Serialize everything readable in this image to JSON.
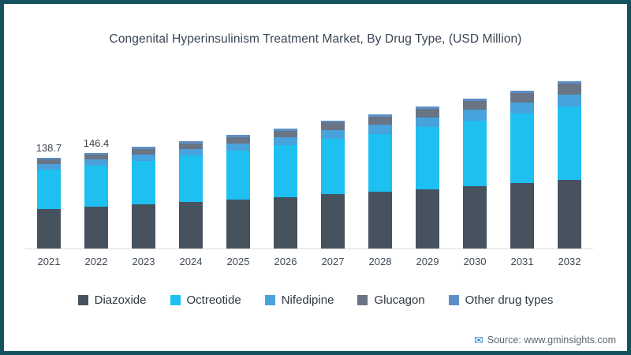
{
  "frame": {
    "border_color": "#15525F",
    "background": "#ffffff"
  },
  "source": {
    "text": "Source: www.gminsights.com",
    "icon": "envelope-icon",
    "icon_color": "#2B7FD6"
  },
  "chart_data": {
    "type": "bar",
    "stacked": true,
    "title": "Congenital Hyperinsulinism Treatment Market, By Drug Type, (USD Million)",
    "xlabel": "",
    "ylabel": "USD Million",
    "legend_position": "bottom",
    "y_axis_visible": false,
    "grid": false,
    "categories": [
      "2021",
      "2022",
      "2023",
      "2024",
      "2025",
      "2026",
      "2027",
      "2028",
      "2029",
      "2030",
      "2031",
      "2032"
    ],
    "value_labels": [
      "138.7",
      "146.4",
      "",
      "",
      "",
      "",
      "",
      "",
      "",
      "",
      "",
      ""
    ],
    "totals": [
      138.7,
      146.4,
      155.0,
      163.9,
      173.2,
      183.1,
      195.6,
      204.6,
      216.6,
      229.1,
      241.1,
      255.4
    ],
    "series": [
      {
        "name": "Diazoxide",
        "color": "#47525F",
        "values": [
          60.3,
          63.3,
          66.9,
          70.6,
          74.4,
          78.4,
          82.7,
          86.3,
          90.9,
          95.7,
          100.4,
          105.3
        ]
      },
      {
        "name": "Octreotide",
        "color": "#1EC0F2",
        "values": [
          60.3,
          63.7,
          67.2,
          71.0,
          75.0,
          79.2,
          85.0,
          89.0,
          94.3,
          99.8,
          105.2,
          111.2
        ]
      },
      {
        "name": "Nifedipine",
        "color": "#48A2DC",
        "values": [
          8.3,
          8.9,
          9.6,
          10.3,
          11.1,
          11.9,
          13.0,
          13.9,
          15.0,
          16.1,
          17.3,
          18.6
        ]
      },
      {
        "name": "Glucagon",
        "color": "#697584",
        "values": [
          6.9,
          7.5,
          8.2,
          8.9,
          9.6,
          10.4,
          11.5,
          12.1,
          13.0,
          14.0,
          14.8,
          16.8
        ]
      },
      {
        "name": "Other drug types",
        "color": "#5C8FC6",
        "values": [
          2.9,
          3.0,
          3.1,
          3.1,
          3.1,
          3.2,
          3.4,
          3.3,
          3.4,
          3.5,
          3.4,
          3.5
        ]
      }
    ]
  }
}
